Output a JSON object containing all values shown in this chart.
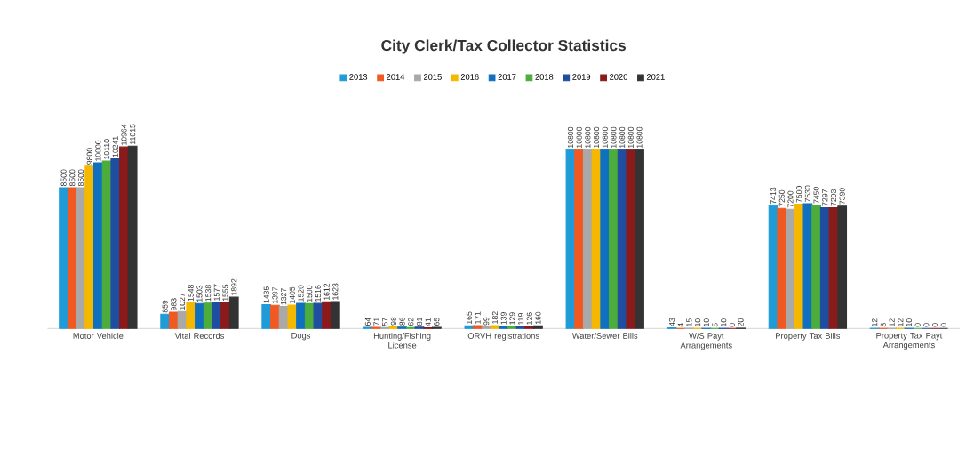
{
  "chart_data": {
    "type": "bar",
    "title": "City Clerk/Tax Collector Statistics",
    "categories": [
      "Motor Vehicle",
      "Vital Records",
      "Dogs",
      "Hunting/Fishing License",
      "ORVH registrations",
      "Water/Sewer Bills",
      "W/S Payt Arrangements",
      "Property Tax Bills",
      "Property Tax Payt Arrangements"
    ],
    "series": [
      {
        "name": "2013",
        "color": "#1f9bd7",
        "values": [
          8500,
          859,
          1435,
          64,
          165,
          10800,
          43,
          7413,
          12
        ]
      },
      {
        "name": "2014",
        "color": "#f05a22",
        "values": [
          8500,
          983,
          1397,
          71,
          171,
          10800,
          4,
          7250,
          8
        ]
      },
      {
        "name": "2015",
        "color": "#a9a9a9",
        "values": [
          8500,
          1027,
          1327,
          57,
          99,
          10800,
          15,
          7200,
          12
        ]
      },
      {
        "name": "2016",
        "color": "#f5b800",
        "values": [
          9800,
          1548,
          1405,
          98,
          182,
          10800,
          10,
          7500,
          12
        ]
      },
      {
        "name": "2017",
        "color": "#1070c0",
        "values": [
          10000,
          1503,
          1520,
          86,
          139,
          10800,
          10,
          7530,
          10
        ]
      },
      {
        "name": "2018",
        "color": "#4cac3c",
        "values": [
          10110,
          1538,
          1500,
          62,
          129,
          10800,
          5,
          7450,
          0
        ]
      },
      {
        "name": "2019",
        "color": "#1f4ea0",
        "values": [
          10241,
          1577,
          1516,
          81,
          119,
          10800,
          10,
          7297,
          0
        ]
      },
      {
        "name": "2020",
        "color": "#8b1a1a",
        "values": [
          10964,
          1555,
          1612,
          41,
          126,
          10800,
          0,
          7293,
          0
        ]
      },
      {
        "name": "2021",
        "color": "#333333",
        "values": [
          11015,
          1892,
          1623,
          65,
          160,
          10800,
          20,
          7390,
          0
        ]
      }
    ],
    "data_labels": true,
    "legend": "top"
  }
}
